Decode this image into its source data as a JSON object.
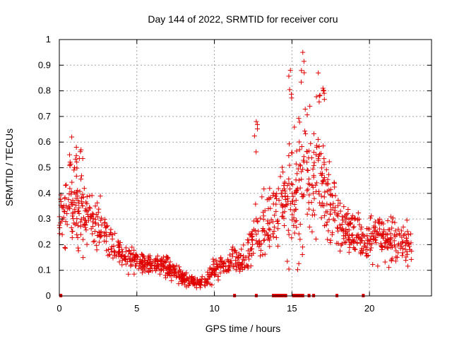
{
  "chart_data": {
    "type": "scatter",
    "title": "Day 144 of 2022, SRMTID for receiver coru",
    "xlabel": "GPS time / hours",
    "ylabel": "SRMTID / TECUs",
    "xlim": [
      0,
      24
    ],
    "ylim": [
      0,
      1
    ],
    "x_ticks": [
      0,
      5,
      10,
      15,
      20
    ],
    "x_tick_labels": [
      "0",
      "5",
      "10",
      "15",
      "20"
    ],
    "y_ticks": [
      0,
      0.1,
      0.2,
      0.3,
      0.4,
      0.5,
      0.6,
      0.7,
      0.8,
      0.9,
      1
    ],
    "y_tick_labels": [
      "0",
      "0.1",
      "0.2",
      "0.3",
      "0.4",
      "0.5",
      "0.6",
      "0.7",
      "0.8",
      "0.9",
      "1"
    ],
    "grid": true,
    "marker": "plus",
    "color": "#e00000",
    "trend": {
      "x": [
        0,
        0.5,
        1,
        1.5,
        2,
        2.5,
        3,
        3.5,
        4,
        4.5,
        5,
        5.5,
        6,
        6.5,
        7,
        7.5,
        8,
        8.5,
        9,
        9.5,
        10,
        10.5,
        11,
        11.5,
        12,
        12.5,
        13,
        13.5,
        14,
        14.5,
        15,
        15.5,
        16,
        16.5,
        17,
        17.5,
        18,
        18.5,
        19,
        19.5,
        20,
        20.5,
        21,
        21.5,
        22,
        22.5,
        22.8
      ],
      "y": [
        0.3,
        0.33,
        0.36,
        0.33,
        0.3,
        0.27,
        0.24,
        0.2,
        0.17,
        0.15,
        0.14,
        0.13,
        0.12,
        0.12,
        0.11,
        0.09,
        0.07,
        0.06,
        0.05,
        0.06,
        0.1,
        0.12,
        0.13,
        0.13,
        0.15,
        0.2,
        0.26,
        0.3,
        0.33,
        0.36,
        0.4,
        0.45,
        0.5,
        0.48,
        0.42,
        0.35,
        0.3,
        0.26,
        0.24,
        0.22,
        0.23,
        0.23,
        0.22,
        0.22,
        0.21,
        0.2,
        0.19
      ],
      "spread": [
        0.1,
        0.12,
        0.16,
        0.14,
        0.1,
        0.09,
        0.09,
        0.07,
        0.05,
        0.04,
        0.04,
        0.04,
        0.04,
        0.04,
        0.04,
        0.03,
        0.025,
        0.02,
        0.02,
        0.03,
        0.04,
        0.04,
        0.05,
        0.05,
        0.06,
        0.09,
        0.15,
        0.16,
        0.14,
        0.17,
        0.22,
        0.26,
        0.25,
        0.22,
        0.18,
        0.14,
        0.12,
        0.1,
        0.09,
        0.08,
        0.08,
        0.08,
        0.08,
        0.08,
        0.08,
        0.08,
        0.07
      ]
    },
    "peaks": [
      {
        "x": 0.8,
        "y": 0.62
      },
      {
        "x": 1.1,
        "y": 0.58
      },
      {
        "x": 1.4,
        "y": 0.57
      },
      {
        "x": 12.7,
        "y": 0.68
      },
      {
        "x": 14.9,
        "y": 0.88
      },
      {
        "x": 15.7,
        "y": 0.95
      },
      {
        "x": 16.7,
        "y": 0.87
      },
      {
        "x": 17.0,
        "y": 0.81
      }
    ],
    "zero_values_x": [
      0.1,
      11.3,
      12.7,
      13.8,
      13.9,
      14.0,
      14.1,
      14.2,
      14.3,
      14.4,
      14.5,
      14.6,
      15.1,
      15.2,
      15.3,
      15.4,
      15.5,
      15.6,
      15.7,
      16.1,
      16.4,
      17.9,
      19.6
    ]
  }
}
